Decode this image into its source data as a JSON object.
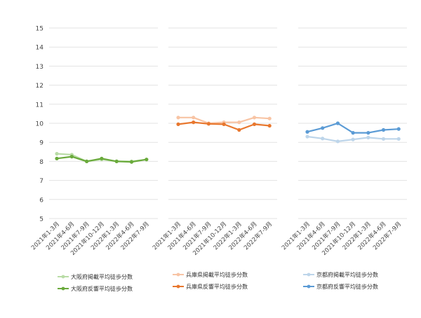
{
  "chart_data": [
    {
      "type": "line",
      "categories": [
        "2021年1-3月",
        "2021年4-6月",
        "2021年7-9月",
        "2021年10-12月",
        "2022年1-3月",
        "2022年4-6月",
        "2022年7-9月"
      ],
      "ylim": [
        5,
        15
      ],
      "y_ticks": [
        "5",
        "6",
        "7",
        "8",
        "9",
        "10",
        "11",
        "12",
        "13",
        "14",
        "15"
      ],
      "grid": true,
      "series": [
        {
          "name": "大阪府掲載平均徒歩分数",
          "color": "#b9dca6",
          "values": [
            8.4,
            8.35,
            8.0,
            8.1,
            8.0,
            8.0,
            8.1
          ]
        },
        {
          "name": "大阪府反響平均徒歩分数",
          "color": "#6aaa3c",
          "values": [
            8.15,
            8.25,
            8.0,
            8.15,
            8.0,
            7.97,
            8.1
          ]
        }
      ]
    },
    {
      "type": "line",
      "categories": [
        "2021年1-3月",
        "2021年4-6月",
        "2021年7-9月",
        "2021年10-12月",
        "2022年1-3月",
        "2022年4-6月",
        "2022年7-9月"
      ],
      "ylim": [
        5,
        15
      ],
      "grid": true,
      "series": [
        {
          "name": "兵庫県掲載平均徒歩分数",
          "color": "#f8c4a4",
          "values": [
            10.3,
            10.3,
            10.0,
            10.05,
            10.05,
            10.3,
            10.25
          ]
        },
        {
          "name": "兵庫県反響平均徒歩分数",
          "color": "#e8772e",
          "values": [
            9.95,
            10.05,
            9.97,
            9.95,
            9.65,
            9.95,
            9.87
          ]
        }
      ]
    },
    {
      "type": "line",
      "categories": [
        "2021年1-3月",
        "2021年4-6月",
        "2021年7-9月",
        "2021年10-12月",
        "2022年1-3月",
        "2022年4-6月",
        "2022年7-9月"
      ],
      "ylim": [
        5,
        15
      ],
      "grid": true,
      "series": [
        {
          "name": "京都府掲載平均徒歩分数",
          "color": "#bdd5ea",
          "values": [
            9.3,
            9.2,
            9.05,
            9.15,
            9.25,
            9.18,
            9.18
          ]
        },
        {
          "name": "京都府反響平均徒歩分数",
          "color": "#5b9bd5",
          "values": [
            9.55,
            9.75,
            10.0,
            9.5,
            9.5,
            9.65,
            9.7
          ]
        }
      ]
    }
  ]
}
